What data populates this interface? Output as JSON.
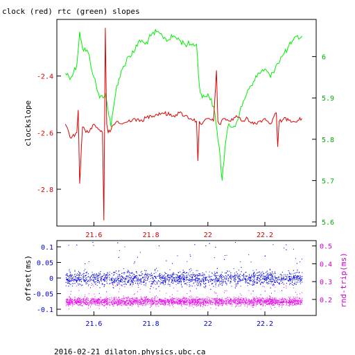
{
  "title": "clock (red) rtc (green) slopes",
  "footer": "2016-02-21  dilaton.physics.ubc.ca",
  "colors": {
    "clock": "#dd0000",
    "rtc": "#00ee00",
    "offset": "#0000ee",
    "rtt": "#ee00ee",
    "axis_red": "#cc0000",
    "axis_green": "#00aa00",
    "axis_blue": "#0000cc",
    "axis_magenta": "#cc00cc"
  },
  "chart_data": [
    {
      "type": "line",
      "title": "clock (red) rtc (green) slopes",
      "xlim": [
        21.47,
        22.38
      ],
      "x_ticks": [
        "21.6",
        "21.8",
        "22",
        "22.2"
      ],
      "ylabel_left": "clockslope",
      "ylim_left": [
        -2.93,
        -2.2
      ],
      "y_ticks_left": [
        "-2.4",
        "-2.6",
        "-2.8"
      ],
      "ylim_right": [
        5.59,
        6.09
      ],
      "y_ticks_right": [
        "6",
        "5.9",
        "5.8",
        "5.7",
        "5.6"
      ],
      "series": [
        {
          "axis": "left",
          "x": [
            21.5,
            21.52,
            21.54,
            21.545,
            21.55,
            21.56,
            21.58,
            21.6,
            21.62,
            21.63,
            21.635,
            21.64,
            21.645,
            21.65,
            21.66,
            21.68,
            21.7,
            21.72,
            21.74,
            21.76,
            21.8,
            21.84,
            21.88,
            21.9,
            21.92,
            21.94,
            21.96,
            21.965,
            21.97,
            21.98,
            22.0,
            22.02,
            22.03,
            22.035,
            22.04,
            22.06,
            22.08,
            22.1,
            22.12,
            22.14,
            22.16,
            22.18,
            22.2,
            22.22,
            22.24,
            22.245,
            22.25,
            22.28,
            22.3,
            22.33
          ],
          "values": [
            -2.57,
            -2.62,
            -2.6,
            -2.52,
            -2.78,
            -2.58,
            -2.6,
            -2.57,
            -2.59,
            -2.6,
            -2.91,
            -2.23,
            -2.57,
            -2.6,
            -2.59,
            -2.56,
            -2.57,
            -2.56,
            -2.55,
            -2.56,
            -2.54,
            -2.53,
            -2.54,
            -2.53,
            -2.54,
            -2.55,
            -2.56,
            -2.7,
            -2.56,
            -2.57,
            -2.55,
            -2.56,
            -2.38,
            -2.56,
            -2.57,
            -2.55,
            -2.56,
            -2.54,
            -2.56,
            -2.55,
            -2.57,
            -2.56,
            -2.55,
            -2.57,
            -2.53,
            -2.65,
            -2.56,
            -2.55,
            -2.56,
            -2.55
          ]
        },
        {
          "axis": "right",
          "x": [
            21.5,
            21.52,
            21.54,
            21.55,
            21.56,
            21.58,
            21.6,
            21.62,
            21.64,
            21.66,
            21.68,
            21.7,
            21.72,
            21.74,
            21.76,
            21.78,
            21.8,
            21.82,
            21.84,
            21.86,
            21.88,
            21.9,
            21.92,
            21.94,
            21.96,
            21.97,
            21.98,
            22.0,
            22.02,
            22.04,
            22.05,
            22.06,
            22.07,
            22.08,
            22.1,
            22.12,
            22.14,
            22.16,
            22.18,
            22.2,
            22.22,
            22.24,
            22.26,
            22.28,
            22.3,
            22.33
          ],
          "values": [
            5.96,
            5.95,
            5.98,
            6.06,
            6.02,
            6.01,
            5.95,
            5.9,
            5.91,
            5.83,
            5.93,
            5.97,
            6.0,
            6.01,
            6.04,
            6.03,
            6.05,
            6.06,
            6.05,
            6.04,
            6.05,
            6.04,
            6.03,
            6.03,
            6.03,
            5.93,
            5.9,
            5.91,
            5.88,
            5.78,
            5.7,
            5.78,
            5.83,
            5.83,
            5.84,
            5.88,
            5.92,
            5.94,
            5.96,
            5.97,
            5.95,
            5.98,
            6.0,
            6.02,
            6.04,
            6.05
          ]
        }
      ]
    },
    {
      "type": "scatter",
      "xlim": [
        21.47,
        22.38
      ],
      "x_ticks": [
        "21.6",
        "21.8",
        "22",
        "22.2"
      ],
      "ylabel_left": "offset(ms)",
      "ylim_left": [
        -0.12,
        0.12
      ],
      "y_ticks_left": [
        "0.1",
        "0.05",
        "0",
        "-0.05",
        "-0.1"
      ],
      "ylabel_right": "rnd-trip(ms)",
      "ylim_right": [
        0.11,
        0.53
      ],
      "y_ticks_right": [
        "0.5",
        "0.4",
        "0.3",
        "0.2"
      ],
      "series": [
        {
          "axis": "left",
          "x_range": [
            21.5,
            22.33
          ],
          "center": 0.0,
          "spread": 0.02,
          "outlier_max": 0.11
        },
        {
          "axis": "right",
          "x_range": [
            21.5,
            22.33
          ],
          "center": 0.19,
          "spread": 0.02,
          "outlier_max": 0.28
        }
      ]
    }
  ]
}
